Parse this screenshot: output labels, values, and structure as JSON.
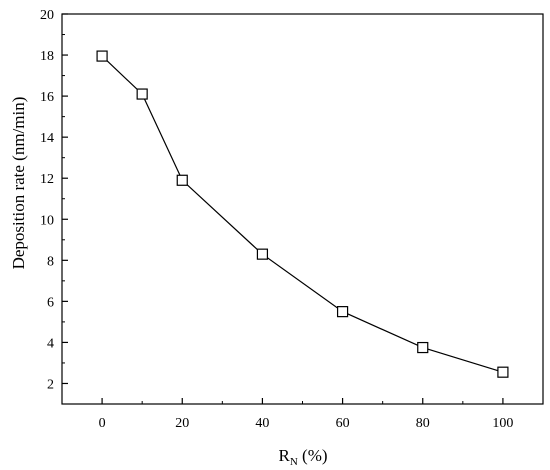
{
  "chart_data": {
    "type": "line",
    "title": "",
    "xlabel": "R",
    "xlabel_subscript": "N",
    "xlabel_suffix": " (%)",
    "ylabel": "Deposition rate (nm/min)",
    "xlim": [
      -10,
      110
    ],
    "ylim": [
      1,
      20
    ],
    "x_ticks": [
      0,
      20,
      40,
      60,
      80,
      100
    ],
    "y_ticks": [
      2,
      4,
      6,
      8,
      10,
      12,
      14,
      16,
      18,
      20
    ],
    "grid": false,
    "marker": "open-square",
    "line_color": "#000000",
    "series": [
      {
        "x": [
          0,
          10,
          20,
          40,
          60,
          80,
          100
        ],
        "y": [
          17.95,
          16.1,
          11.9,
          8.3,
          5.5,
          3.75,
          2.55
        ]
      }
    ]
  }
}
